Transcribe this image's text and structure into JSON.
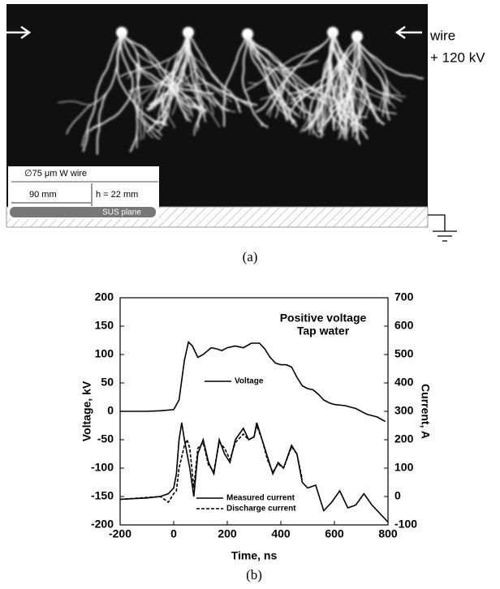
{
  "panel_a": {
    "wire_label": "wire",
    "voltage_label": "+ 120 kV",
    "inset": {
      "wire_spec": "∅75 μm W wire",
      "distance": "90 mm",
      "gap": "h = 22 mm",
      "plane": "SUS plane"
    },
    "caption": "(a)"
  },
  "chart_data": {
    "type": "line",
    "caption": "(b)",
    "xlabel": "Time, ns",
    "ylabel": "Voltage, kV",
    "y2label": "Current, A",
    "annotations": [
      "Positive voltage",
      "Tap water"
    ],
    "xlim": [
      -200,
      800
    ],
    "xticks": [
      -200,
      0,
      200,
      400,
      600,
      800
    ],
    "ylim": [
      -200,
      200
    ],
    "yticks": [
      -200,
      -150,
      -100,
      -50,
      0,
      50,
      100,
      150,
      200
    ],
    "y2lim": [
      -100,
      700
    ],
    "y2ticks": [
      -100,
      0,
      100,
      200,
      300,
      400,
      500,
      600,
      700
    ],
    "series": [
      {
        "name": "Voltage",
        "color": "#000000",
        "dash": false,
        "axis": "y",
        "x": [
          -200,
          -100,
          -50,
          0,
          20,
          40,
          55,
          70,
          90,
          110,
          140,
          160,
          180,
          200,
          230,
          260,
          290,
          320,
          340,
          360,
          380,
          400,
          420,
          440,
          460,
          480,
          500,
          520,
          540,
          560,
          580,
          600,
          640,
          680,
          720,
          760,
          790
        ],
        "values": [
          0,
          0,
          1,
          3,
          20,
          90,
          122,
          115,
          95,
          100,
          112,
          110,
          107,
          112,
          115,
          112,
          120,
          120,
          110,
          95,
          85,
          82,
          82,
          78,
          60,
          45,
          40,
          38,
          30,
          20,
          15,
          12,
          10,
          5,
          -5,
          -10,
          -18
        ]
      },
      {
        "name": "Measured current",
        "color": "#000000",
        "dash": false,
        "axis": "y2",
        "x": [
          -200,
          -100,
          -50,
          -20,
          0,
          10,
          20,
          30,
          40,
          50,
          60,
          75,
          90,
          110,
          130,
          150,
          170,
          190,
          210,
          230,
          260,
          280,
          300,
          310,
          330,
          350,
          370,
          390,
          410,
          440,
          460,
          480,
          500,
          530,
          560,
          590,
          620,
          650,
          680,
          710,
          740,
          770,
          800
        ],
        "values": [
          -10,
          -5,
          0,
          10,
          30,
          80,
          200,
          260,
          200,
          150,
          100,
          0,
          150,
          200,
          120,
          80,
          200,
          150,
          120,
          200,
          240,
          200,
          210,
          260,
          200,
          140,
          80,
          120,
          100,
          180,
          150,
          50,
          30,
          40,
          -50,
          -20,
          20,
          -40,
          -30,
          10,
          -30,
          -60,
          -90
        ]
      },
      {
        "name": "Discharge current",
        "color": "#000000",
        "dash": true,
        "axis": "y2",
        "x": [
          -200,
          -50,
          -20,
          0,
          10,
          20,
          40,
          50,
          60,
          75,
          90,
          110,
          130,
          150,
          170,
          190,
          210,
          230,
          260,
          280,
          300,
          310,
          330,
          350,
          370,
          390,
          410,
          440,
          460,
          480
        ],
        "values": [
          -10,
          0,
          -20,
          10,
          20,
          100,
          180,
          200,
          170,
          30,
          170,
          190,
          110,
          90,
          190,
          170,
          130,
          190,
          220,
          200,
          210,
          250,
          200,
          130,
          85,
          115,
          100,
          175,
          150,
          60
        ]
      }
    ]
  }
}
